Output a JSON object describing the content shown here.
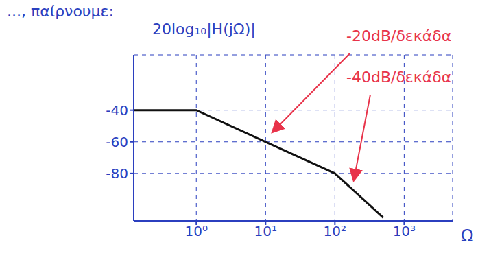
{
  "chart_data": {
    "type": "line",
    "title": "..., παίρνουμε:",
    "y_label": "20log₁₀|H(jΩ)|",
    "x_label": "Ω",
    "x": [
      0.125,
      1,
      10,
      100,
      500
    ],
    "values": [
      -40,
      -40,
      -60,
      -80,
      -108
    ],
    "color": "#111111",
    "marker": "none",
    "line_style": "solid",
    "log": "x",
    "xlim": [
      0.125,
      5000
    ],
    "xticks": [
      {
        "value": 1,
        "label": "10⁰"
      },
      {
        "value": 10,
        "label": "10¹"
      },
      {
        "value": 100,
        "label": "10²"
      },
      {
        "value": 1000,
        "label": "10³"
      }
    ],
    "ylim": [
      -110,
      -5
    ],
    "yticks": [
      -80,
      -60,
      -40
    ],
    "grid": true,
    "annotations": [
      "-20dB/δεκάδα",
      "-40dB/δεκάδα"
    ]
  }
}
